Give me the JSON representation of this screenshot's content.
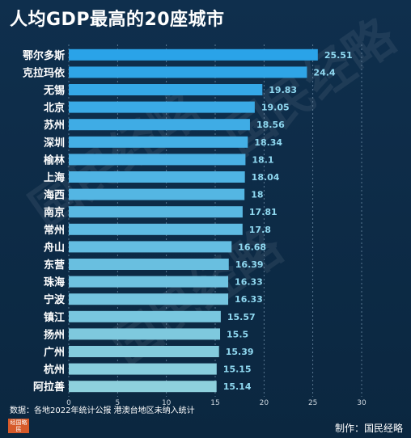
{
  "title": "人均GDP最高的20座城市",
  "source_note": "数据：各地2022年统计公报  港澳台地区未纳入统计",
  "credit": "制作：国民经略",
  "logo_text": "经国略民",
  "watermark_text": "国民经略",
  "colors": {
    "background": "#0d2a45",
    "bar_top": "#2aa3e8",
    "bar_bottom": "#8ed0dc",
    "value_label": "#8fd8f0",
    "category_label": "#ffffff",
    "axis_label": "#cfd8e0",
    "grid": "#6c8aa3"
  },
  "chart_data": {
    "type": "bar",
    "orientation": "horizontal",
    "title": "人均GDP最高的20座城市",
    "categories": [
      "鄂尔多斯",
      "克拉玛依",
      "无锡",
      "北京",
      "苏州",
      "深圳",
      "榆林",
      "上海",
      "海西",
      "南京",
      "常州",
      "舟山",
      "东营",
      "珠海",
      "宁波",
      "镇江",
      "扬州",
      "广州",
      "杭州",
      "阿拉善"
    ],
    "values": [
      25.51,
      24.4,
      19.83,
      19.05,
      18.56,
      18.34,
      18.1,
      18.04,
      18,
      17.81,
      17.8,
      16.68,
      16.39,
      16.33,
      16.33,
      15.57,
      15.5,
      15.39,
      15.15,
      15.14
    ],
    "value_labels": [
      "25.51",
      "24.4",
      "19.83",
      "19.05",
      "18.56",
      "18.34",
      "18.1",
      "18.04",
      "18",
      "17.81",
      "17.8",
      "16.68",
      "16.39",
      "16.33",
      "16.33",
      "15.57",
      "15.5",
      "15.39",
      "15.15",
      "15.14"
    ],
    "xlim": [
      0,
      30
    ],
    "xticks": [
      0,
      5,
      10,
      15,
      20,
      25,
      30
    ],
    "xlabel": "",
    "ylabel": "",
    "grid": "vertical dotted"
  }
}
